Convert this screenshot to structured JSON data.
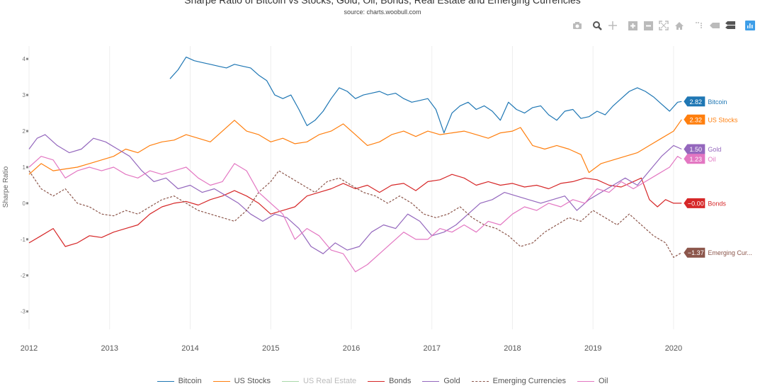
{
  "header": {
    "title": "Sharpe Ratio of Bitcoin vs Stocks, Gold, Oil, Bonds, Real Estate and Emerging Currencies",
    "source": "source: charts.woobull.com"
  },
  "toolbar": {
    "icons": [
      "camera-icon",
      "zoom-icon",
      "pan-icon",
      "zoom-in-icon",
      "zoom-out-icon",
      "autoscale-icon",
      "home-icon",
      "spike-lines-icon",
      "hover-closest-icon",
      "hover-compare-icon",
      "plotly-logo-icon"
    ]
  },
  "chart_data": {
    "type": "line",
    "ylabel": "Sharpe Ratio",
    "xlim": [
      2012.0,
      2020.15
    ],
    "ylim": [
      -3.3,
      4.2
    ],
    "x_ticks": [
      2012,
      2013,
      2014,
      2015,
      2016,
      2017,
      2018,
      2019,
      2020
    ],
    "y_ticks": [
      -3,
      -2,
      -1,
      0,
      1,
      2,
      3,
      4
    ],
    "grid": true,
    "legend_position": "bottom",
    "series": [
      {
        "name": "Bitcoin",
        "color": "#1f77b4",
        "visible": true,
        "dash": false,
        "end_label": "2.82",
        "x": [
          2013.75,
          2013.85,
          2013.95,
          2014.05,
          2014.15,
          2014.25,
          2014.35,
          2014.45,
          2014.55,
          2014.65,
          2014.75,
          2014.85,
          2014.95,
          2015.05,
          2015.15,
          2015.25,
          2015.35,
          2015.45,
          2015.55,
          2015.65,
          2015.75,
          2015.85,
          2015.95,
          2016.05,
          2016.15,
          2016.25,
          2016.35,
          2016.45,
          2016.55,
          2016.65,
          2016.75,
          2016.85,
          2016.95,
          2017.05,
          2017.15,
          2017.25,
          2017.35,
          2017.45,
          2017.55,
          2017.65,
          2017.75,
          2017.85,
          2017.95,
          2018.05,
          2018.15,
          2018.25,
          2018.35,
          2018.45,
          2018.55,
          2018.65,
          2018.75,
          2018.85,
          2018.95,
          2019.05,
          2019.15,
          2019.25,
          2019.35,
          2019.45,
          2019.55,
          2019.65,
          2019.75,
          2019.85,
          2019.95,
          2020.05,
          2020.1
        ],
        "y": [
          3.45,
          3.7,
          4.05,
          3.95,
          3.9,
          3.85,
          3.8,
          3.75,
          3.85,
          3.8,
          3.75,
          3.55,
          3.4,
          3.0,
          2.9,
          3.0,
          2.6,
          2.15,
          2.3,
          2.55,
          2.9,
          3.2,
          3.1,
          2.9,
          3.0,
          3.05,
          3.1,
          3.0,
          3.05,
          2.9,
          2.8,
          2.85,
          2.9,
          2.6,
          1.95,
          2.5,
          2.7,
          2.8,
          2.6,
          2.7,
          2.55,
          2.3,
          2.8,
          2.6,
          2.5,
          2.65,
          2.7,
          2.45,
          2.3,
          2.55,
          2.6,
          2.35,
          2.4,
          2.55,
          2.45,
          2.7,
          2.9,
          3.1,
          3.2,
          3.1,
          2.95,
          2.75,
          2.55,
          2.8,
          2.82
        ]
      },
      {
        "name": "US Stocks",
        "color": "#ff7f0e",
        "visible": true,
        "dash": false,
        "end_label": "2.32",
        "x": [
          2012.0,
          2012.15,
          2012.3,
          2012.45,
          2012.6,
          2012.75,
          2012.9,
          2013.05,
          2013.2,
          2013.35,
          2013.5,
          2013.65,
          2013.8,
          2013.95,
          2014.1,
          2014.25,
          2014.4,
          2014.55,
          2014.7,
          2014.85,
          2015.0,
          2015.15,
          2015.3,
          2015.45,
          2015.6,
          2015.75,
          2015.9,
          2016.05,
          2016.2,
          2016.35,
          2016.5,
          2016.65,
          2016.8,
          2016.95,
          2017.1,
          2017.25,
          2017.4,
          2017.55,
          2017.7,
          2017.85,
          2018.0,
          2018.1,
          2018.25,
          2018.4,
          2018.55,
          2018.7,
          2018.85,
          2018.95,
          2019.1,
          2019.25,
          2019.4,
          2019.55,
          2019.7,
          2019.85,
          2020.0,
          2020.1
        ],
        "y": [
          0.8,
          1.1,
          0.9,
          0.95,
          1.0,
          1.1,
          1.2,
          1.3,
          1.5,
          1.4,
          1.6,
          1.7,
          1.75,
          1.9,
          1.8,
          1.7,
          2.0,
          2.3,
          2.0,
          1.9,
          1.7,
          1.8,
          1.65,
          1.7,
          1.9,
          2.0,
          2.2,
          1.9,
          1.6,
          1.7,
          1.9,
          2.0,
          1.85,
          2.0,
          1.9,
          1.95,
          2.0,
          1.9,
          1.8,
          1.95,
          2.0,
          2.1,
          1.6,
          1.5,
          1.6,
          1.5,
          1.35,
          0.85,
          1.1,
          1.2,
          1.3,
          1.4,
          1.6,
          1.8,
          2.0,
          2.32
        ]
      },
      {
        "name": "US Real Estate",
        "color": "#2ca02c",
        "visible": false,
        "dash": false,
        "end_label": "",
        "x": [],
        "y": []
      },
      {
        "name": "Bonds",
        "color": "#d62728",
        "visible": true,
        "dash": false,
        "end_label": "−0.00",
        "x": [
          2012.0,
          2012.15,
          2012.3,
          2012.45,
          2012.6,
          2012.75,
          2012.9,
          2013.05,
          2013.2,
          2013.35,
          2013.5,
          2013.65,
          2013.8,
          2013.95,
          2014.1,
          2014.25,
          2014.4,
          2014.55,
          2014.7,
          2014.85,
          2015.0,
          2015.15,
          2015.3,
          2015.45,
          2015.6,
          2015.75,
          2015.9,
          2016.05,
          2016.2,
          2016.35,
          2016.5,
          2016.65,
          2016.8,
          2016.95,
          2017.1,
          2017.25,
          2017.4,
          2017.55,
          2017.7,
          2017.85,
          2018.0,
          2018.15,
          2018.3,
          2018.45,
          2018.6,
          2018.75,
          2018.9,
          2019.05,
          2019.2,
          2019.35,
          2019.5,
          2019.6,
          2019.7,
          2019.8,
          2019.9,
          2020.0,
          2020.1
        ],
        "y": [
          -1.1,
          -0.9,
          -0.7,
          -1.2,
          -1.1,
          -0.9,
          -0.95,
          -0.8,
          -0.7,
          -0.6,
          -0.3,
          -0.1,
          0.0,
          0.05,
          -0.05,
          0.1,
          0.2,
          0.35,
          0.2,
          0.0,
          -0.3,
          -0.2,
          -0.1,
          0.2,
          0.3,
          0.4,
          0.55,
          0.4,
          0.5,
          0.3,
          0.5,
          0.55,
          0.35,
          0.6,
          0.65,
          0.8,
          0.7,
          0.5,
          0.6,
          0.5,
          0.55,
          0.45,
          0.5,
          0.4,
          0.55,
          0.6,
          0.7,
          0.65,
          0.5,
          0.45,
          0.6,
          0.7,
          0.1,
          -0.1,
          0.1,
          0.0,
          0.0
        ]
      },
      {
        "name": "Gold",
        "color": "#9467bd",
        "visible": true,
        "dash": false,
        "end_label": "1.50",
        "x": [
          2012.0,
          2012.1,
          2012.2,
          2012.35,
          2012.5,
          2012.65,
          2012.8,
          2012.95,
          2013.1,
          2013.25,
          2013.4,
          2013.55,
          2013.7,
          2013.85,
          2014.0,
          2014.15,
          2014.3,
          2014.45,
          2014.6,
          2014.75,
          2014.9,
          2015.05,
          2015.2,
          2015.35,
          2015.5,
          2015.65,
          2015.8,
          2015.95,
          2016.1,
          2016.25,
          2016.4,
          2016.55,
          2016.7,
          2016.85,
          2017.0,
          2017.15,
          2017.3,
          2017.45,
          2017.6,
          2017.75,
          2017.9,
          2018.05,
          2018.2,
          2018.35,
          2018.5,
          2018.65,
          2018.8,
          2018.95,
          2019.1,
          2019.25,
          2019.4,
          2019.55,
          2019.7,
          2019.85,
          2020.0,
          2020.1
        ],
        "y": [
          1.5,
          1.8,
          1.9,
          1.6,
          1.4,
          1.5,
          1.8,
          1.7,
          1.5,
          1.3,
          0.9,
          0.6,
          0.7,
          0.4,
          0.5,
          0.3,
          0.4,
          0.2,
          0.0,
          -0.3,
          -0.5,
          -0.3,
          -0.4,
          -0.7,
          -1.2,
          -1.4,
          -1.1,
          -1.3,
          -1.2,
          -0.8,
          -0.6,
          -0.7,
          -0.3,
          -0.5,
          -0.9,
          -0.8,
          -0.6,
          -0.3,
          0.0,
          0.1,
          0.3,
          0.2,
          0.1,
          0.0,
          0.1,
          0.2,
          -0.2,
          0.1,
          0.3,
          0.5,
          0.7,
          0.5,
          0.9,
          1.3,
          1.6,
          1.5
        ]
      },
      {
        "name": "Emerging Currencies",
        "color": "#8c564b",
        "visible": true,
        "dash": true,
        "end_label": "−1.37",
        "x": [
          2012.0,
          2012.15,
          2012.3,
          2012.45,
          2012.6,
          2012.75,
          2012.9,
          2013.05,
          2013.2,
          2013.35,
          2013.5,
          2013.65,
          2013.8,
          2013.95,
          2014.1,
          2014.25,
          2014.4,
          2014.55,
          2014.7,
          2014.85,
          2015.0,
          2015.1,
          2015.25,
          2015.4,
          2015.55,
          2015.7,
          2015.85,
          2016.0,
          2016.15,
          2016.3,
          2016.45,
          2016.6,
          2016.75,
          2016.9,
          2017.05,
          2017.2,
          2017.35,
          2017.5,
          2017.65,
          2017.8,
          2017.95,
          2018.1,
          2018.25,
          2018.4,
          2018.55,
          2018.7,
          2018.85,
          2019.0,
          2019.15,
          2019.3,
          2019.45,
          2019.6,
          2019.75,
          2019.9,
          2020.0,
          2020.1
        ],
        "y": [
          0.9,
          0.4,
          0.2,
          0.4,
          0.0,
          -0.1,
          -0.3,
          -0.35,
          -0.2,
          -0.3,
          -0.1,
          0.1,
          0.2,
          0.0,
          -0.2,
          -0.3,
          -0.4,
          -0.5,
          -0.2,
          0.3,
          0.6,
          0.9,
          0.7,
          0.5,
          0.3,
          0.6,
          0.7,
          0.5,
          0.3,
          0.2,
          0.0,
          0.2,
          0.0,
          -0.3,
          -0.4,
          -0.3,
          -0.1,
          -0.4,
          -0.6,
          -0.7,
          -0.9,
          -1.2,
          -1.1,
          -0.8,
          -0.6,
          -0.4,
          -0.5,
          -0.2,
          -0.4,
          -0.6,
          -0.3,
          -0.6,
          -0.9,
          -1.1,
          -1.5,
          -1.37
        ]
      },
      {
        "name": "Oil",
        "color": "#e377c2",
        "visible": true,
        "dash": false,
        "end_label": "1.23",
        "x": [
          2012.0,
          2012.15,
          2012.3,
          2012.45,
          2012.6,
          2012.75,
          2012.9,
          2013.05,
          2013.2,
          2013.35,
          2013.5,
          2013.65,
          2013.8,
          2013.95,
          2014.1,
          2014.25,
          2014.4,
          2014.55,
          2014.7,
          2014.85,
          2015.0,
          2015.15,
          2015.3,
          2015.45,
          2015.6,
          2015.75,
          2015.9,
          2016.05,
          2016.2,
          2016.35,
          2016.5,
          2016.65,
          2016.8,
          2016.95,
          2017.1,
          2017.25,
          2017.4,
          2017.55,
          2017.7,
          2017.85,
          2018.0,
          2018.15,
          2018.3,
          2018.45,
          2018.6,
          2018.75,
          2018.9,
          2019.05,
          2019.2,
          2019.35,
          2019.5,
          2019.65,
          2019.8,
          2019.95,
          2020.05,
          2020.1
        ],
        "y": [
          1.0,
          1.3,
          1.2,
          0.7,
          0.9,
          1.0,
          0.9,
          1.0,
          0.8,
          0.7,
          0.9,
          0.8,
          0.9,
          1.0,
          0.7,
          0.5,
          0.6,
          1.1,
          0.9,
          0.3,
          0.0,
          -0.3,
          -1.0,
          -0.7,
          -0.9,
          -1.3,
          -1.4,
          -1.9,
          -1.7,
          -1.4,
          -1.1,
          -0.8,
          -1.0,
          -1.0,
          -0.7,
          -0.8,
          -0.6,
          -0.8,
          -0.5,
          -0.6,
          -0.3,
          -0.1,
          -0.2,
          0.0,
          -0.1,
          0.1,
          0.0,
          0.4,
          0.3,
          0.6,
          0.4,
          0.6,
          0.8,
          1.0,
          1.3,
          1.23
        ]
      }
    ]
  }
}
